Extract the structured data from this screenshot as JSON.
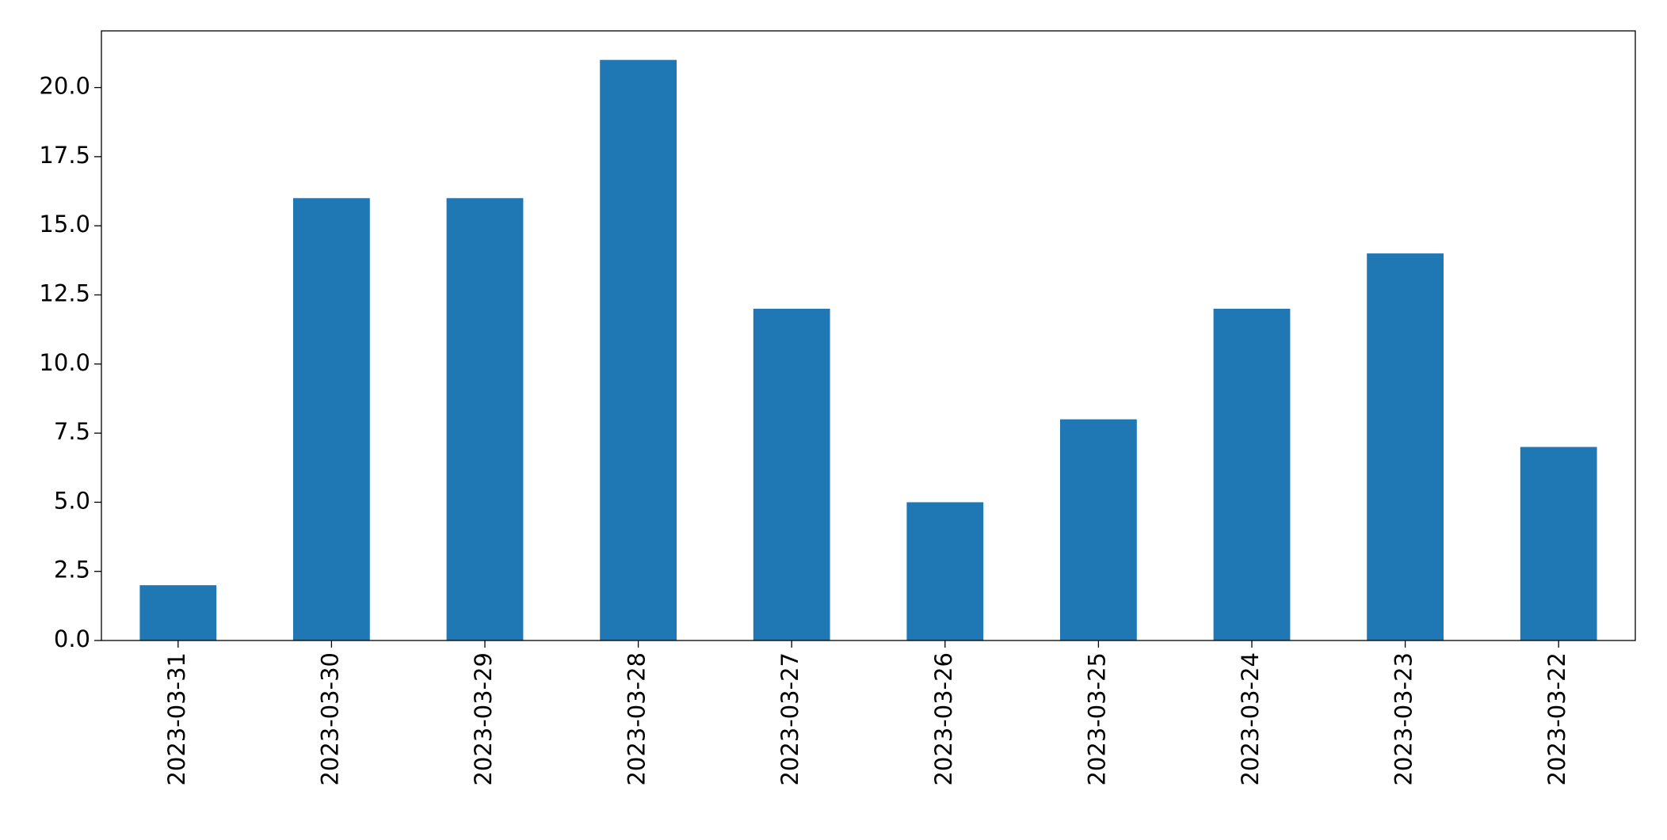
{
  "chart_data": {
    "type": "bar",
    "categories": [
      "2023-03-31",
      "2023-03-30",
      "2023-03-29",
      "2023-03-28",
      "2023-03-27",
      "2023-03-26",
      "2023-03-25",
      "2023-03-24",
      "2023-03-23",
      "2023-03-22"
    ],
    "values": [
      2,
      16,
      16,
      21,
      12,
      5,
      8,
      12,
      14,
      7
    ],
    "color": "#1f77b4",
    "ylim": [
      0,
      22.05
    ],
    "yticks": [
      {
        "value": 0,
        "label": "0.0"
      },
      2.5,
      {
        "value": 5,
        "label": "5.0"
      },
      7.5,
      {
        "value": 10,
        "label": "10.0"
      },
      12.5,
      {
        "value": 15,
        "label": "15.0"
      },
      17.5,
      {
        "value": 20,
        "label": "20.0"
      }
    ],
    "grid": false
  }
}
